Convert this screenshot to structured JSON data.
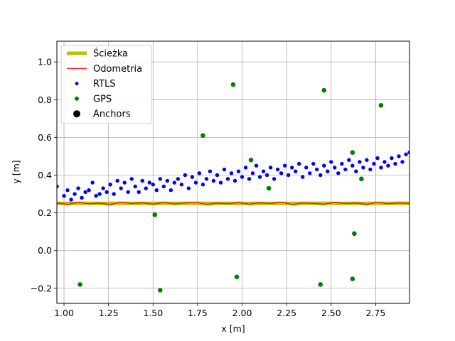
{
  "chart_data": {
    "type": "scatter",
    "title": "",
    "xlabel": "x [m]",
    "ylabel": "y [m]",
    "xlim": [
      0.96,
      2.94
    ],
    "ylim": [
      -0.28,
      1.11
    ],
    "xticks": [
      1.0,
      1.25,
      1.5,
      1.75,
      2.0,
      2.25,
      2.5,
      2.75
    ],
    "xtick_labels": [
      "1.00",
      "1.25",
      "1.50",
      "1.75",
      "2.00",
      "2.25",
      "2.50",
      "2.75"
    ],
    "yticks": [
      -0.2,
      0.0,
      0.2,
      0.4,
      0.6,
      0.8,
      1.0
    ],
    "ytick_labels": [
      "−0.2",
      "0.0",
      "0.2",
      "0.4",
      "0.6",
      "0.8",
      "1.0"
    ],
    "grid": true,
    "legend_position": "top-left",
    "series": [
      {
        "name": "Ścieżka",
        "kind": "line",
        "color": "#bfbf00",
        "x": [
          0.96,
          2.94
        ],
        "y": [
          0.25,
          0.25
        ]
      },
      {
        "name": "Odometria",
        "kind": "line",
        "color": "#ff0000",
        "x": [
          0.96,
          1.02,
          1.08,
          1.14,
          1.2,
          1.26,
          1.32,
          1.38,
          1.44,
          1.5,
          1.56,
          1.62,
          1.68,
          1.74,
          1.8,
          1.86,
          1.92,
          1.98,
          2.04,
          2.1,
          2.16,
          2.22,
          2.28,
          2.34,
          2.4,
          2.46,
          2.52,
          2.58,
          2.64,
          2.7,
          2.76,
          2.82,
          2.88,
          2.94
        ],
        "y": [
          0.252,
          0.245,
          0.256,
          0.248,
          0.251,
          0.244,
          0.257,
          0.249,
          0.253,
          0.246,
          0.255,
          0.247,
          0.252,
          0.256,
          0.245,
          0.251,
          0.248,
          0.254,
          0.246,
          0.253,
          0.249,
          0.257,
          0.244,
          0.252,
          0.25,
          0.246,
          0.255,
          0.249,
          0.252,
          0.245,
          0.256,
          0.248,
          0.253,
          0.25
        ]
      },
      {
        "name": "RTLS",
        "kind": "scatter",
        "color": "#0000ff",
        "x": [
          0.96,
          1.0,
          1.02,
          1.04,
          1.06,
          1.08,
          1.1,
          1.12,
          1.14,
          1.16,
          1.18,
          1.2,
          1.22,
          1.24,
          1.26,
          1.28,
          1.3,
          1.32,
          1.34,
          1.36,
          1.38,
          1.4,
          1.42,
          1.44,
          1.46,
          1.48,
          1.5,
          1.52,
          1.54,
          1.56,
          1.58,
          1.6,
          1.62,
          1.64,
          1.66,
          1.68,
          1.7,
          1.72,
          1.74,
          1.76,
          1.78,
          1.8,
          1.82,
          1.84,
          1.86,
          1.88,
          1.9,
          1.92,
          1.94,
          1.96,
          1.98,
          2.0,
          2.02,
          2.04,
          2.06,
          2.08,
          2.1,
          2.12,
          2.14,
          2.16,
          2.18,
          2.2,
          2.22,
          2.24,
          2.26,
          2.28,
          2.3,
          2.32,
          2.34,
          2.36,
          2.38,
          2.4,
          2.42,
          2.44,
          2.46,
          2.48,
          2.5,
          2.52,
          2.54,
          2.56,
          2.58,
          2.6,
          2.62,
          2.64,
          2.66,
          2.68,
          2.7,
          2.72,
          2.74,
          2.76,
          2.78,
          2.8,
          2.82,
          2.84,
          2.86,
          2.88,
          2.9,
          2.92,
          2.94
        ],
        "y": [
          0.34,
          0.29,
          0.32,
          0.27,
          0.3,
          0.33,
          0.28,
          0.31,
          0.32,
          0.36,
          0.29,
          0.3,
          0.33,
          0.31,
          0.35,
          0.3,
          0.37,
          0.33,
          0.36,
          0.31,
          0.38,
          0.34,
          0.31,
          0.37,
          0.33,
          0.36,
          0.35,
          0.32,
          0.38,
          0.34,
          0.37,
          0.32,
          0.36,
          0.38,
          0.35,
          0.4,
          0.33,
          0.39,
          0.36,
          0.41,
          0.35,
          0.38,
          0.42,
          0.37,
          0.4,
          0.36,
          0.43,
          0.38,
          0.41,
          0.37,
          0.42,
          0.39,
          0.44,
          0.38,
          0.41,
          0.45,
          0.39,
          0.42,
          0.4,
          0.44,
          0.38,
          0.43,
          0.41,
          0.45,
          0.4,
          0.44,
          0.42,
          0.46,
          0.39,
          0.44,
          0.41,
          0.46,
          0.43,
          0.4,
          0.45,
          0.42,
          0.47,
          0.44,
          0.41,
          0.46,
          0.43,
          0.48,
          0.45,
          0.42,
          0.47,
          0.44,
          0.48,
          0.43,
          0.46,
          0.49,
          0.44,
          0.47,
          0.45,
          0.49,
          0.46,
          0.5,
          0.47,
          0.51,
          0.52
        ]
      },
      {
        "name": "GPS",
        "kind": "scatter",
        "color": "#008000",
        "x": [
          1.09,
          1.51,
          1.54,
          1.78,
          1.95,
          1.97,
          2.05,
          2.15,
          2.44,
          2.46,
          2.62,
          2.62,
          2.63,
          2.67,
          2.78
        ],
        "y": [
          -0.18,
          0.19,
          -0.21,
          0.61,
          0.88,
          -0.14,
          0.48,
          0.33,
          -0.18,
          0.85,
          0.52,
          -0.15,
          0.09,
          0.38,
          0.77
        ]
      },
      {
        "name": "Anchors",
        "kind": "scatter",
        "color": "#000000",
        "x": [],
        "y": []
      }
    ]
  }
}
